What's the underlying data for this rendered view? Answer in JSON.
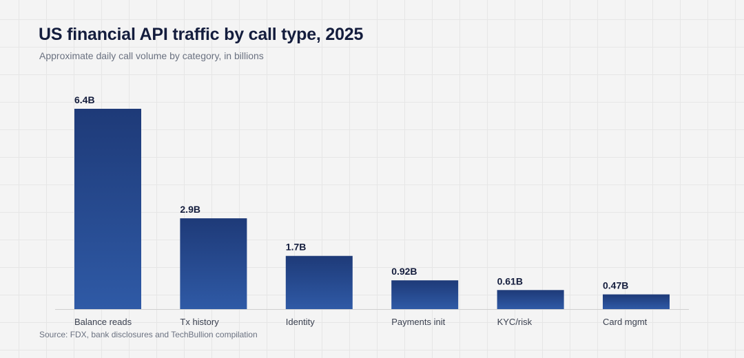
{
  "chart_data": {
    "type": "bar",
    "title": "US financial API traffic by call type, 2025",
    "subtitle": "Approximate daily call volume by category, in billions",
    "categories": [
      "Balance reads",
      "Tx history",
      "Identity",
      "Payments init",
      "KYC/risk",
      "Card mgmt"
    ],
    "values": [
      6.4,
      2.9,
      1.7,
      0.92,
      0.61,
      0.47
    ],
    "value_labels": [
      "6.4B",
      "2.9B",
      "1.7B",
      "0.92B",
      "0.61B",
      "0.47B"
    ],
    "unit": "billions",
    "ylim": [
      0,
      6.4
    ],
    "grid": false,
    "legend": "none",
    "bar_color_top": "#1e3a78",
    "bar_color_bottom": "#2f5aa6",
    "source": "Source: FDX, bank disclosures and TechBullion compilation"
  }
}
